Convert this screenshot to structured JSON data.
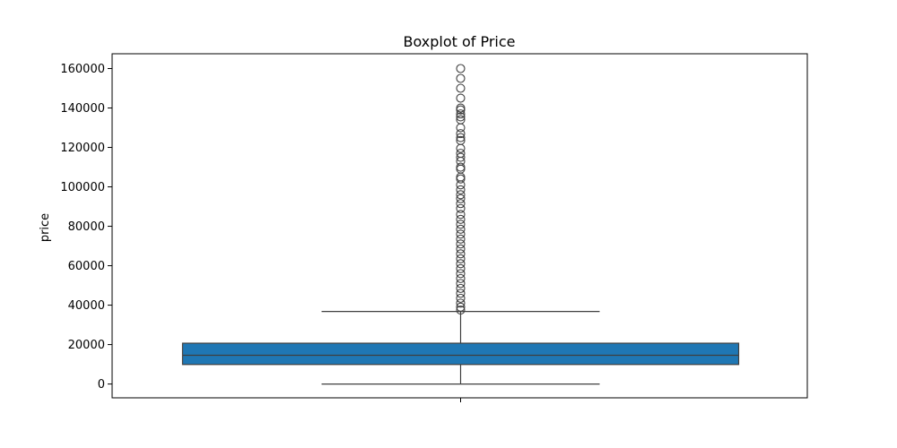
{
  "chart_data": {
    "type": "boxplot",
    "title": "Boxplot of Price",
    "xlabel": "",
    "ylabel": "price",
    "ylim": [
      -7000,
      167500
    ],
    "yticks": [
      0,
      20000,
      40000,
      60000,
      80000,
      100000,
      120000,
      140000,
      160000
    ],
    "grid": false,
    "box_color": "#1f77b4",
    "line_color": "#3f3f3f",
    "series": [
      {
        "whisker_low": 0,
        "q1": 9900,
        "median": 14600,
        "q3": 20700,
        "whisker_high": 36800,
        "outliers": [
          37500,
          39000,
          41000,
          43500,
          46000,
          48500,
          51000,
          53500,
          56000,
          58500,
          61000,
          63500,
          66000,
          68500,
          71000,
          73500,
          76000,
          78500,
          81000,
          83500,
          86000,
          89000,
          91500,
          94000,
          96000,
          98500,
          101000,
          104000,
          105000,
          109000,
          110000,
          113000,
          115000,
          117000,
          119500,
          123500,
          125000,
          127000,
          130000,
          134000,
          135500,
          137000,
          139000,
          140000,
          145000,
          150000,
          155000,
          160000
        ]
      }
    ]
  }
}
